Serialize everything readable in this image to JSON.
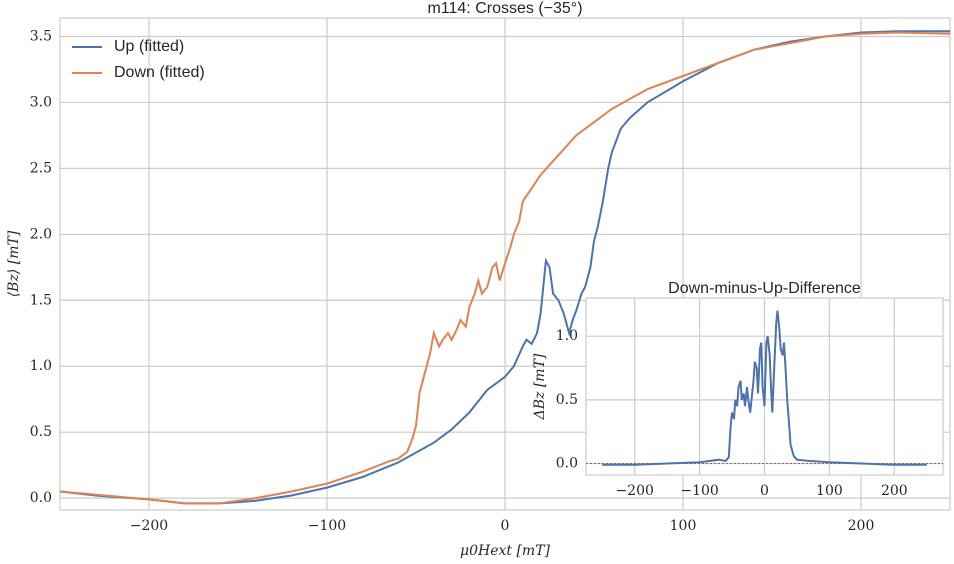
{
  "chart_data": [
    {
      "type": "line",
      "title": "m114: Crosses (−35°)",
      "xlabel": "μ0Hext [mT]",
      "ylabel": "⟨Bz⟩ [mT]",
      "xlim": [
        -250,
        250
      ],
      "ylim": [
        -0.09,
        3.64
      ],
      "xticks": [
        {
          "value": -200,
          "label": "−200"
        },
        {
          "value": -100,
          "label": "−100"
        },
        0,
        100,
        200
      ],
      "yticks": [
        {
          "value": 0,
          "label": "0.0"
        },
        0.5,
        {
          "value": 1,
          "label": "1.0"
        },
        1.5,
        {
          "value": 2,
          "label": "2.0"
        },
        2.5,
        {
          "value": 3,
          "label": "3.0"
        },
        3.5
      ],
      "grid": true,
      "legend": "upper left",
      "series": [
        {
          "name": "Up (fitted)",
          "color": "#4c72b0",
          "x": [
            -250,
            -230,
            -200,
            -180,
            -160,
            -140,
            -120,
            -100,
            -80,
            -60,
            -40,
            -30,
            -20,
            -10,
            0,
            5,
            10,
            12,
            15,
            18,
            20,
            23,
            25,
            27,
            30,
            33,
            36,
            38,
            40,
            43,
            45,
            48,
            50,
            52,
            55,
            58,
            60,
            65,
            70,
            80,
            90,
            100,
            120,
            140,
            160,
            180,
            200,
            220,
            250
          ],
          "values": [
            0.05,
            0.02,
            -0.01,
            -0.04,
            -0.04,
            -0.02,
            0.02,
            0.08,
            0.16,
            0.27,
            0.42,
            0.52,
            0.65,
            0.82,
            0.92,
            1.0,
            1.15,
            1.2,
            1.17,
            1.25,
            1.4,
            1.8,
            1.75,
            1.55,
            1.5,
            1.4,
            1.25,
            1.35,
            1.42,
            1.55,
            1.6,
            1.75,
            1.95,
            2.05,
            2.25,
            2.5,
            2.62,
            2.8,
            2.88,
            3.0,
            3.08,
            3.16,
            3.3,
            3.4,
            3.46,
            3.5,
            3.53,
            3.54,
            3.54
          ]
        },
        {
          "name": "Down (fitted)",
          "color": "#dd8452",
          "x": [
            -250,
            -200,
            -180,
            -160,
            -140,
            -120,
            -100,
            -80,
            -65,
            -60,
            -55,
            -52,
            -50,
            -48,
            -45,
            -42,
            -40,
            -37,
            -35,
            -32,
            -30,
            -27,
            -25,
            -22,
            -20,
            -17,
            -15,
            -13,
            -10,
            -7,
            -5,
            -3,
            0,
            3,
            5,
            8,
            10,
            15,
            20,
            30,
            40,
            50,
            60,
            80,
            100,
            120,
            140,
            160,
            180,
            200,
            220,
            250
          ],
          "values": [
            0.05,
            -0.01,
            -0.04,
            -0.04,
            0.0,
            0.05,
            0.11,
            0.2,
            0.28,
            0.3,
            0.35,
            0.45,
            0.55,
            0.8,
            0.95,
            1.1,
            1.25,
            1.15,
            1.2,
            1.25,
            1.2,
            1.28,
            1.35,
            1.3,
            1.45,
            1.55,
            1.65,
            1.55,
            1.6,
            1.75,
            1.78,
            1.65,
            1.78,
            1.9,
            2.0,
            2.1,
            2.25,
            2.35,
            2.45,
            2.6,
            2.75,
            2.85,
            2.95,
            3.1,
            3.2,
            3.3,
            3.4,
            3.45,
            3.5,
            3.52,
            3.53,
            3.52
          ]
        }
      ]
    },
    {
      "type": "line",
      "title": "Down-minus-Up-Difference",
      "ylabel": "ΔBz [mT]",
      "xlim": [
        -275,
        275
      ],
      "ylim": [
        -0.09,
        1.3
      ],
      "xticks": [
        {
          "value": -200,
          "label": "−200"
        },
        {
          "value": -100,
          "label": "−100"
        },
        0,
        100,
        200
      ],
      "yticks": [
        {
          "value": 0,
          "label": "0.0"
        },
        0.5,
        {
          "value": 1,
          "label": "1.0"
        }
      ],
      "grid": true,
      "zero_line": 0,
      "zero_line_color": "#c44e52",
      "series": [
        {
          "color": "#4c72b0",
          "x": [
            -250,
            -200,
            -150,
            -100,
            -70,
            -60,
            -55,
            -52,
            -50,
            -47,
            -45,
            -42,
            -40,
            -37,
            -35,
            -32,
            -30,
            -27,
            -25,
            -22,
            -20,
            -17,
            -15,
            -12,
            -10,
            -7,
            -5,
            -3,
            0,
            3,
            5,
            8,
            10,
            12,
            15,
            18,
            20,
            23,
            25,
            28,
            30,
            33,
            35,
            38,
            40,
            45,
            50,
            70,
            100,
            150,
            200,
            250
          ],
          "values": [
            -0.01,
            -0.01,
            0.0,
            0.01,
            0.03,
            0.02,
            0.05,
            0.3,
            0.4,
            0.35,
            0.5,
            0.45,
            0.6,
            0.65,
            0.5,
            0.55,
            0.45,
            0.6,
            0.5,
            0.4,
            0.5,
            0.65,
            0.8,
            0.75,
            0.55,
            0.9,
            0.95,
            0.6,
            0.45,
            0.95,
            1.0,
            0.85,
            0.6,
            0.4,
            0.75,
            1.1,
            1.2,
            1.05,
            0.9,
            0.85,
            0.95,
            0.7,
            0.5,
            0.3,
            0.15,
            0.06,
            0.03,
            0.02,
            0.01,
            0.0,
            -0.01,
            -0.01
          ]
        }
      ]
    }
  ]
}
